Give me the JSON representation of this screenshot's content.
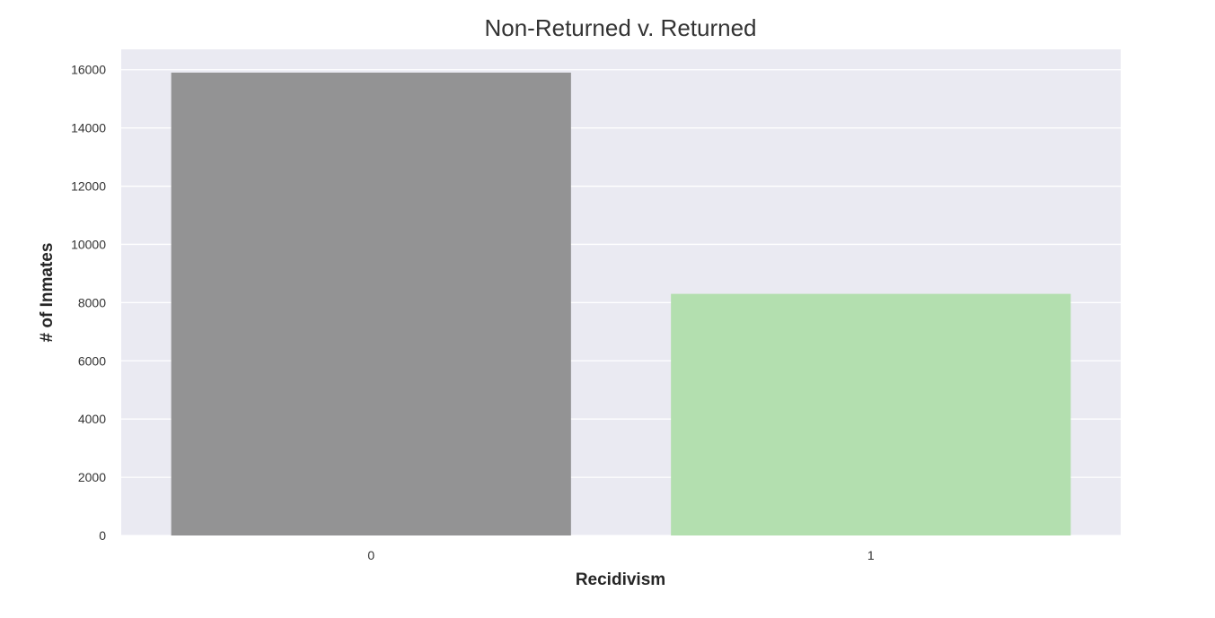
{
  "colors": {
    "plot_background": "#EAEAF2",
    "grid": "#FFFFFF",
    "bar_0": "#939394",
    "bar_1": "#B3DFAF"
  },
  "chart_data": {
    "type": "bar",
    "title": "Non-Returned v. Returned",
    "xlabel": "Recidivism",
    "ylabel": "# of Inmates",
    "categories": [
      "0",
      "1"
    ],
    "values": [
      15900,
      8300
    ],
    "ylim": [
      0,
      16700
    ],
    "yticks": [
      0,
      2000,
      4000,
      6000,
      8000,
      10000,
      12000,
      14000,
      16000
    ],
    "grid": true,
    "legend": "none"
  }
}
